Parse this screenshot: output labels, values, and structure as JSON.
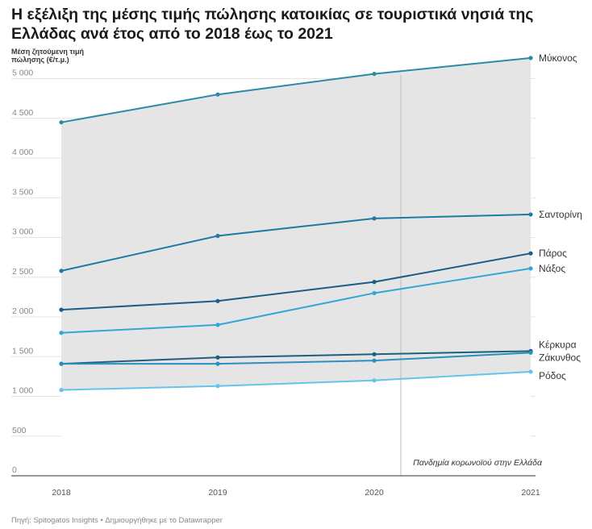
{
  "title": "Η εξέλιξη της μέσης τιμής πώλησης κατοικίας σε τουριστικά νησιά της Ελλάδας ανά έτος από το 2018 έως το 2021",
  "source": "Πηγή: Spitogatos Insights • Δημιουργήθηκε με το Datawrapper",
  "chart_data": {
    "type": "line",
    "title": "Η εξέλιξη της μέσης τιμής πώλησης κατοικίας σε τουριστικά νησιά της Ελλάδας ανά έτος από το 2018 έως το 2021",
    "ylabel": "Μέση ζητούμενη τιμή πώλησης (€/τ.μ.)",
    "xlabel": "",
    "x": [
      2018,
      2019,
      2020,
      2021
    ],
    "ylim": [
      0,
      5300
    ],
    "yticks": [
      0,
      500,
      1000,
      1500,
      2000,
      2500,
      3000,
      3500,
      4000,
      4500,
      5000
    ],
    "ytick_labels": [
      "0",
      "500",
      "1 000",
      "1 500",
      "2 000",
      "2 500",
      "3 000",
      "3 500",
      "4 000",
      "4 500",
      "5 000"
    ],
    "grid": true,
    "range_shading": true,
    "annotation": {
      "text": "Πανδημία κορωνοϊού στην Ελλάδα",
      "x": 2020.17
    },
    "series": [
      {
        "name": "Μύκονος",
        "color": "#2a8aa8",
        "values": [
          4450,
          4800,
          5060,
          5260
        ]
      },
      {
        "name": "Σαντορίνη",
        "color": "#1d7aa6",
        "values": [
          2580,
          3020,
          3240,
          3290
        ]
      },
      {
        "name": "Πάρος",
        "color": "#1d5c86",
        "values": [
          2090,
          2200,
          2440,
          2800
        ]
      },
      {
        "name": "Νάξος",
        "color": "#33a6d6",
        "values": [
          1800,
          1900,
          2300,
          2610
        ]
      },
      {
        "name": "Κέρκυρα",
        "color": "#1f5f7e",
        "values": [
          1410,
          1490,
          1530,
          1570
        ]
      },
      {
        "name": "Ζάκυνθος",
        "color": "#2b8fbf",
        "values": [
          1410,
          1410,
          1450,
          1550
        ]
      },
      {
        "name": "Ρόδος",
        "color": "#64c4ec",
        "values": [
          1080,
          1130,
          1200,
          1310
        ]
      }
    ]
  }
}
